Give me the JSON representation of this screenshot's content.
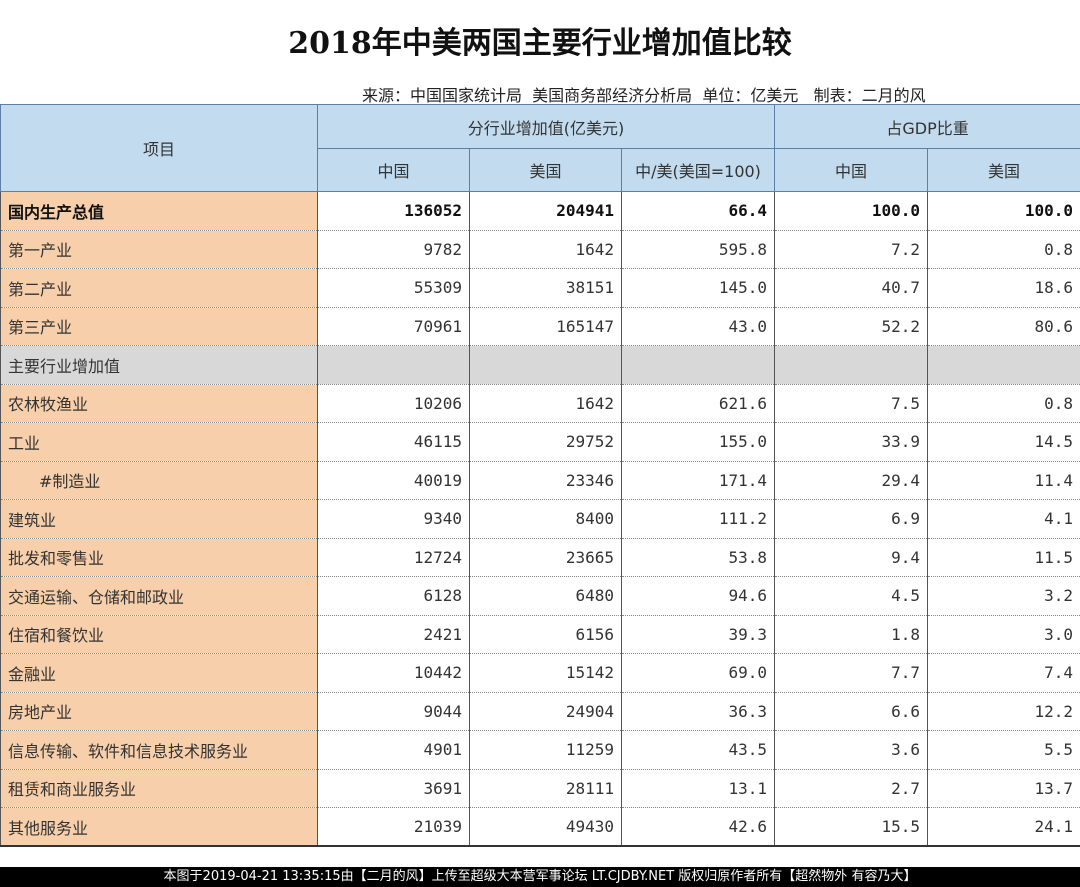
{
  "title": "2018年中美两国主要行业增加值比较",
  "source": "来源：中国国家统计局  美国商务部经济分析局  单位：亿美元   制表：二月的风",
  "headers": {
    "item": "项目",
    "group1": "分行业增加值(亿美元)",
    "group2": "占GDP比重",
    "china": "中国",
    "usa": "美国",
    "ratio": "中/美(美国=100)",
    "china2": "中国",
    "usa2": "美国"
  },
  "rows": [
    {
      "name": "国内生产总值",
      "cn": "136052",
      "us": "204941",
      "ratio": "66.4",
      "cn_pct": "100.0",
      "us_pct": "100.0"
    },
    {
      "name": "第一产业",
      "cn": "9782",
      "us": "1642",
      "ratio": "595.8",
      "cn_pct": "7.2",
      "us_pct": "0.8"
    },
    {
      "name": "第二产业",
      "cn": "55309",
      "us": "38151",
      "ratio": "145.0",
      "cn_pct": "40.7",
      "us_pct": "18.6"
    },
    {
      "name": "第三产业",
      "cn": "70961",
      "us": "165147",
      "ratio": "43.0",
      "cn_pct": "52.2",
      "us_pct": "80.6"
    },
    {
      "name": "主要行业增加值",
      "cn": "",
      "us": "",
      "ratio": "",
      "cn_pct": "",
      "us_pct": ""
    },
    {
      "name": "农林牧渔业",
      "cn": "10206",
      "us": "1642",
      "ratio": "621.6",
      "cn_pct": "7.5",
      "us_pct": "0.8"
    },
    {
      "name": "工业",
      "cn": "46115",
      "us": "29752",
      "ratio": "155.0",
      "cn_pct": "33.9",
      "us_pct": "14.5"
    },
    {
      "name": "#制造业",
      "cn": "40019",
      "us": "23346",
      "ratio": "171.4",
      "cn_pct": "29.4",
      "us_pct": "11.4"
    },
    {
      "name": "建筑业",
      "cn": "9340",
      "us": "8400",
      "ratio": "111.2",
      "cn_pct": "6.9",
      "us_pct": "4.1"
    },
    {
      "name": "批发和零售业",
      "cn": "12724",
      "us": "23665",
      "ratio": "53.8",
      "cn_pct": "9.4",
      "us_pct": "11.5"
    },
    {
      "name": "交通运输、仓储和邮政业",
      "cn": "6128",
      "us": "6480",
      "ratio": "94.6",
      "cn_pct": "4.5",
      "us_pct": "3.2"
    },
    {
      "name": "住宿和餐饮业",
      "cn": "2421",
      "us": "6156",
      "ratio": "39.3",
      "cn_pct": "1.8",
      "us_pct": "3.0"
    },
    {
      "name": "金融业",
      "cn": "10442",
      "us": "15142",
      "ratio": "69.0",
      "cn_pct": "7.7",
      "us_pct": "7.4"
    },
    {
      "name": "房地产业",
      "cn": "9044",
      "us": "24904",
      "ratio": "36.3",
      "cn_pct": "6.6",
      "us_pct": "12.2"
    },
    {
      "name": "信息传输、软件和信息技术服务业",
      "cn": "4901",
      "us": "11259",
      "ratio": "43.5",
      "cn_pct": "3.6",
      "us_pct": "5.5"
    },
    {
      "name": "租赁和商业服务业",
      "cn": "3691",
      "us": "28111",
      "ratio": "13.1",
      "cn_pct": "2.7",
      "us_pct": "13.7"
    },
    {
      "name": "其他服务业",
      "cn": "21039",
      "us": "49430",
      "ratio": "42.6",
      "cn_pct": "15.5",
      "us_pct": "24.1"
    }
  ],
  "footer": "本图于2019-04-21 13:35:15由【二月的风】上传至超级大本营军事论坛 LT.CJDBY.NET 版权归原作者所有【超然物外 有容乃大】"
}
